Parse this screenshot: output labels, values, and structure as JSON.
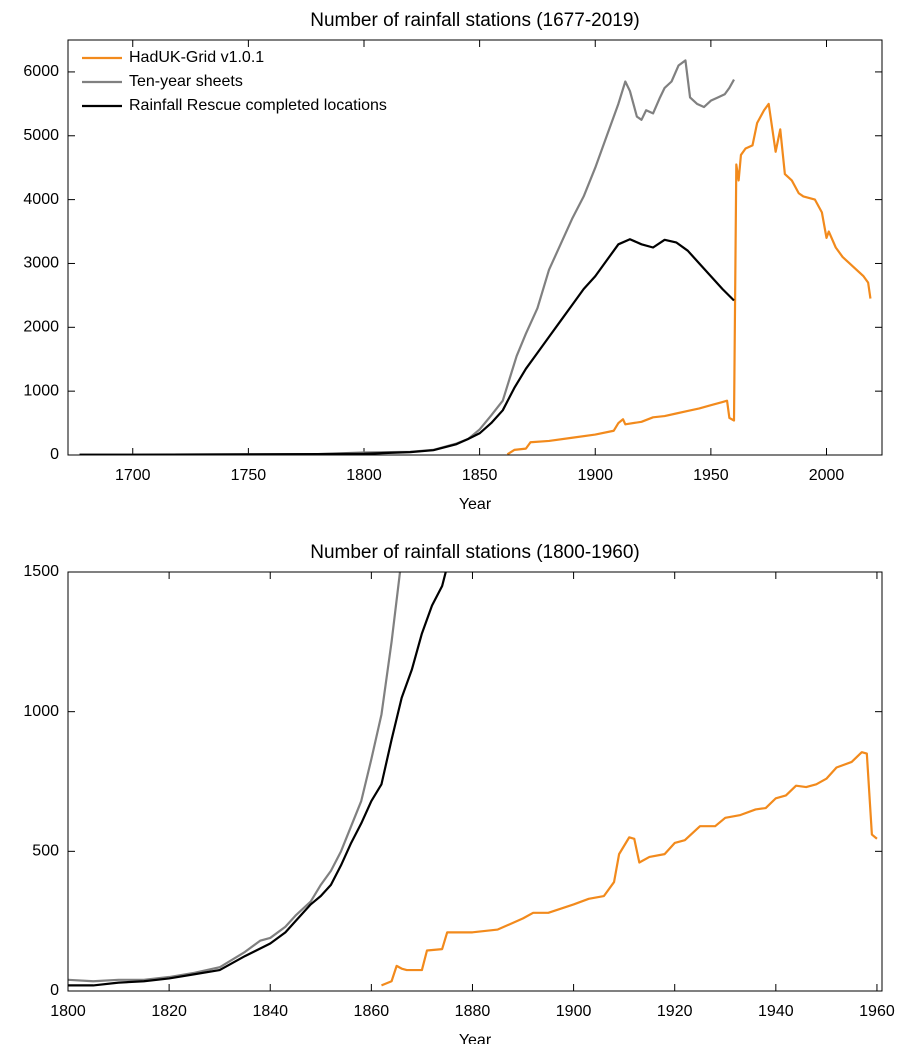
{
  "chart_data": [
    {
      "type": "line",
      "title": "Number of rainfall stations (1677-2019)",
      "xlabel": "Year",
      "xlim": [
        1672,
        2024
      ],
      "ylim": [
        0,
        6500
      ],
      "xticks": [
        1700,
        1750,
        1800,
        1850,
        1900,
        1950,
        2000
      ],
      "yticks": [
        0,
        1000,
        2000,
        3000,
        4000,
        5000,
        6000
      ],
      "legend": "upper left",
      "series": [
        {
          "name": "HadUK-Grid v1.0.1",
          "color": "#f28a1c",
          "x": [
            1862,
            1865,
            1870,
            1872,
            1880,
            1890,
            1900,
            1908,
            1910,
            1912,
            1913,
            1920,
            1925,
            1930,
            1935,
            1940,
            1945,
            1950,
            1955,
            1957,
            1958,
            1960,
            1961,
            1962,
            1963,
            1965,
            1968,
            1970,
            1973,
            1975,
            1977,
            1978,
            1980,
            1982,
            1985,
            1988,
            1990,
            1995,
            1998,
            2000,
            2001,
            2004,
            2007,
            2010,
            2013,
            2016,
            2018,
            2019
          ],
          "values": [
            10,
            80,
            100,
            200,
            220,
            270,
            320,
            380,
            500,
            560,
            480,
            520,
            590,
            610,
            650,
            690,
            730,
            780,
            830,
            850,
            580,
            540,
            4550,
            4300,
            4700,
            4800,
            4850,
            5200,
            5400,
            5500,
            5000,
            4750,
            5100,
            4400,
            4300,
            4100,
            4050,
            4000,
            3800,
            3400,
            3500,
            3250,
            3100,
            3000,
            2900,
            2800,
            2700,
            2450
          ]
        },
        {
          "name": "Ten-year sheets",
          "color": "#808080",
          "x": [
            1677,
            1700,
            1750,
            1780,
            1800,
            1820,
            1830,
            1840,
            1845,
            1850,
            1855,
            1860,
            1863,
            1866,
            1870,
            1875,
            1880,
            1885,
            1890,
            1895,
            1900,
            1905,
            1910,
            1913,
            1915,
            1918,
            1920,
            1922,
            1925,
            1928,
            1930,
            1933,
            1936,
            1939,
            1941,
            1944,
            1947,
            1950,
            1953,
            1956,
            1958,
            1960
          ],
          "values": [
            5,
            5,
            10,
            15,
            40,
            50,
            80,
            180,
            250,
            400,
            620,
            850,
            1200,
            1550,
            1900,
            2300,
            2900,
            3300,
            3700,
            4050,
            4500,
            5000,
            5500,
            5850,
            5700,
            5300,
            5250,
            5400,
            5350,
            5600,
            5750,
            5850,
            6100,
            6180,
            5600,
            5500,
            5450,
            5550,
            5600,
            5650,
            5750,
            5880
          ]
        },
        {
          "name": "Rainfall Rescue completed locations",
          "color": "#000000",
          "x": [
            1677,
            1700,
            1750,
            1780,
            1800,
            1820,
            1830,
            1840,
            1845,
            1850,
            1855,
            1860,
            1865,
            1870,
            1875,
            1880,
            1885,
            1890,
            1895,
            1900,
            1905,
            1910,
            1915,
            1920,
            1925,
            1930,
            1935,
            1940,
            1945,
            1950,
            1955,
            1960
          ],
          "values": [
            5,
            5,
            10,
            15,
            20,
            45,
            75,
            170,
            250,
            340,
            500,
            700,
            1050,
            1350,
            1600,
            1850,
            2100,
            2350,
            2600,
            2800,
            3050,
            3300,
            3380,
            3300,
            3250,
            3370,
            3330,
            3200,
            3000,
            2800,
            2600,
            2420
          ]
        }
      ]
    },
    {
      "type": "line",
      "title": "Number of rainfall stations (1800-1960)",
      "xlabel": "Year",
      "xlim": [
        1800,
        1961
      ],
      "ylim": [
        0,
        1500
      ],
      "xticks": [
        1800,
        1820,
        1840,
        1860,
        1880,
        1900,
        1920,
        1940,
        1960
      ],
      "yticks": [
        0,
        500,
        1000,
        1500
      ],
      "series": [
        {
          "color": "#f28a1c",
          "x": [
            1862,
            1864,
            1865,
            1866,
            1867,
            1870,
            1871,
            1874,
            1875,
            1880,
            1885,
            1890,
            1892,
            1895,
            1900,
            1903,
            1906,
            1908,
            1909,
            1911,
            1912,
            1913,
            1915,
            1918,
            1920,
            1922,
            1925,
            1928,
            1930,
            1933,
            1936,
            1938,
            1940,
            1942,
            1944,
            1946,
            1948,
            1950,
            1952,
            1955,
            1957,
            1958,
            1959,
            1960
          ],
          "values": [
            20,
            35,
            90,
            80,
            75,
            75,
            145,
            150,
            210,
            210,
            220,
            260,
            280,
            280,
            310,
            330,
            340,
            390,
            490,
            550,
            545,
            460,
            480,
            490,
            530,
            540,
            590,
            590,
            620,
            630,
            650,
            655,
            690,
            700,
            735,
            730,
            740,
            760,
            800,
            820,
            855,
            850,
            560,
            545
          ]
        },
        {
          "color": "#808080",
          "x": [
            1800,
            1805,
            1810,
            1815,
            1820,
            1825,
            1830,
            1835,
            1838,
            1840,
            1843,
            1845,
            1848,
            1850,
            1852,
            1854,
            1856,
            1858,
            1860,
            1862,
            1864,
            1866
          ],
          "values": [
            40,
            35,
            40,
            40,
            50,
            65,
            85,
            140,
            180,
            190,
            230,
            270,
            320,
            380,
            430,
            500,
            590,
            680,
            830,
            990,
            1250,
            1550
          ]
        },
        {
          "color": "#000000",
          "x": [
            1800,
            1805,
            1810,
            1815,
            1820,
            1825,
            1830,
            1835,
            1840,
            1843,
            1845,
            1848,
            1850,
            1852,
            1854,
            1856,
            1858,
            1860,
            1862,
            1864,
            1866,
            1868,
            1870,
            1872,
            1874,
            1875
          ],
          "values": [
            20,
            20,
            30,
            35,
            45,
            60,
            75,
            125,
            170,
            210,
            250,
            310,
            340,
            380,
            450,
            530,
            600,
            680,
            740,
            900,
            1050,
            1150,
            1280,
            1380,
            1450,
            1520
          ]
        }
      ]
    }
  ]
}
